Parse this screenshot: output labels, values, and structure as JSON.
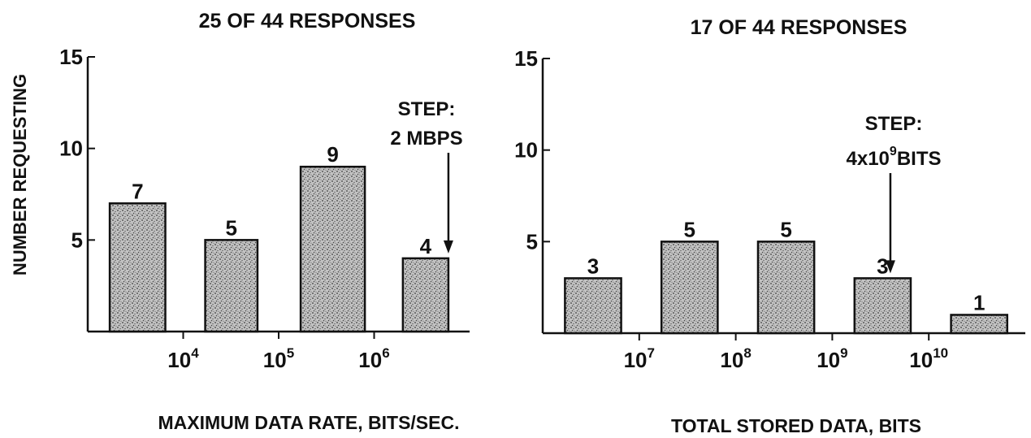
{
  "y_axis_label": "NUMBER REQUESTING",
  "ink": "#111111",
  "bar_fill": "#bdbdbd",
  "chart_data": [
    {
      "type": "bar",
      "title": "25 OF 44 RESPONSES",
      "xlabel": "MAXIMUM DATA RATE, BITS/SEC.",
      "ylabel": "NUMBER REQUESTING",
      "x_scale": "log",
      "xlim": [
        1000,
        10000000
      ],
      "ylim": [
        0,
        15
      ],
      "y_ticks": [
        {
          "value": 5,
          "label": "5"
        },
        {
          "value": 10,
          "label": "10"
        },
        {
          "value": 15,
          "label": "15"
        }
      ],
      "x_ticks": [
        {
          "value": 10000,
          "base": "10",
          "exp": "4"
        },
        {
          "value": 100000,
          "base": "10",
          "exp": "5"
        },
        {
          "value": 1000000,
          "base": "10",
          "exp": "6"
        }
      ],
      "bars": [
        {
          "x_start": 1700,
          "x_end": 6500,
          "value": 7,
          "label": "7"
        },
        {
          "x_start": 17000,
          "x_end": 60000,
          "value": 5,
          "label": "5"
        },
        {
          "x_start": 170000,
          "x_end": 800000,
          "value": 9,
          "label": "9"
        },
        {
          "x_start": 2000000,
          "x_end": 6000000,
          "value": 4,
          "label": "4"
        }
      ],
      "annotation": {
        "lines": [
          "STEP:",
          "2 MBPS"
        ],
        "arrow_x": 6000000,
        "arrow_to_y": 4
      }
    },
    {
      "type": "bar",
      "title": "17 OF 44 RESPONSES",
      "xlabel": "TOTAL STORED DATA, BITS",
      "ylabel": "",
      "x_scale": "log",
      "xlim": [
        1000000,
        100000000000
      ],
      "ylim": [
        0,
        15
      ],
      "y_ticks": [
        {
          "value": 5,
          "label": "5"
        },
        {
          "value": 10,
          "label": "10"
        },
        {
          "value": 15,
          "label": "15"
        }
      ],
      "x_ticks": [
        {
          "value": 10000000,
          "base": "10",
          "exp": "7"
        },
        {
          "value": 100000000,
          "base": "10",
          "exp": "8"
        },
        {
          "value": 1000000000,
          "base": "10",
          "exp": "9"
        },
        {
          "value": 10000000000,
          "base": "10",
          "exp": "10"
        }
      ],
      "bars": [
        {
          "x_start": 1700000,
          "x_end": 6500000,
          "value": 3,
          "label": "3"
        },
        {
          "x_start": 17000000,
          "x_end": 65000000,
          "value": 5,
          "label": "5"
        },
        {
          "x_start": 170000000,
          "x_end": 650000000,
          "value": 5,
          "label": "5"
        },
        {
          "x_start": 1700000000,
          "x_end": 6500000000,
          "value": 3,
          "label": "3"
        },
        {
          "x_start": 17000000000,
          "x_end": 65000000000,
          "value": 1,
          "label": "1"
        }
      ],
      "annotation": {
        "lines": [
          "STEP:",
          "4x10",
          "9",
          "BITS"
        ],
        "arrow_x": 4000000000,
        "arrow_to_y": 3
      }
    }
  ]
}
